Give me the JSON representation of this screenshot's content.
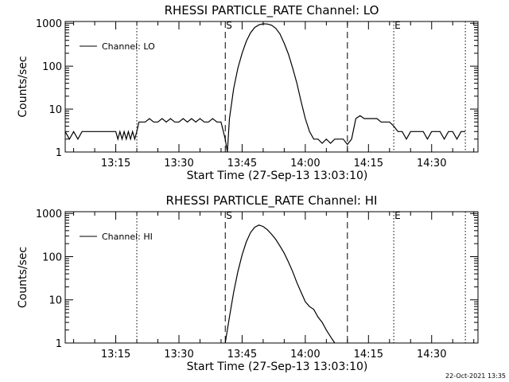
{
  "footer": {
    "timestamp": "22-Oct-2021 13:35"
  },
  "chart_data": [
    {
      "type": "line",
      "title": "RHESSI PARTICLE_RATE Channel: LO",
      "xlabel": "Start Time (27-Sep-13 13:03:10)",
      "ylabel": "Counts/sec",
      "yscale": "log",
      "xlim": [
        "13:03",
        "14:41"
      ],
      "ylim": [
        1,
        1100
      ],
      "x_ticks": [
        "13:15",
        "13:30",
        "13:45",
        "14:00",
        "14:15",
        "14:30"
      ],
      "y_ticks": [
        "1",
        "10",
        "100",
        "1000"
      ],
      "legend": {
        "position": "top-left",
        "entries": [
          "Channel: LO"
        ]
      },
      "markers": [
        {
          "time": "13:20",
          "style": "dotted"
        },
        {
          "time": "13:41",
          "style": "dashed",
          "label": "S"
        },
        {
          "time": "14:10",
          "style": "dashed"
        },
        {
          "time": "14:21",
          "style": "dotted",
          "label": "E"
        },
        {
          "time": "14:38",
          "style": "dotted"
        }
      ],
      "series": [
        {
          "name": "Channel: LO",
          "points": [
            [
              "13:03",
              3
            ],
            [
              "13:04",
              2
            ],
            [
              "13:05",
              3
            ],
            [
              "13:06",
              2
            ],
            [
              "13:07",
              3
            ],
            [
              "13:08",
              3
            ],
            [
              "13:10",
              3
            ],
            [
              "13:12",
              3
            ],
            [
              "13:14",
              3
            ],
            [
              "13:15",
              3
            ],
            [
              "13:15.5",
              2
            ],
            [
              "13:16",
              3
            ],
            [
              "13:16.5",
              2
            ],
            [
              "13:17",
              3
            ],
            [
              "13:17.5",
              2
            ],
            [
              "13:18",
              3
            ],
            [
              "13:18.5",
              2
            ],
            [
              "13:19",
              3
            ],
            [
              "13:19.5",
              2
            ],
            [
              "13:20",
              3
            ],
            [
              "13:20.5",
              5
            ],
            [
              "13:22",
              5
            ],
            [
              "13:23",
              6
            ],
            [
              "13:24",
              5
            ],
            [
              "13:25",
              5
            ],
            [
              "13:26",
              6
            ],
            [
              "13:27",
              5
            ],
            [
              "13:28",
              6
            ],
            [
              "13:29",
              5
            ],
            [
              "13:30",
              5
            ],
            [
              "13:31",
              6
            ],
            [
              "13:32",
              5
            ],
            [
              "13:33",
              6
            ],
            [
              "13:34",
              5
            ],
            [
              "13:35",
              6
            ],
            [
              "13:36",
              5
            ],
            [
              "13:37",
              5
            ],
            [
              "13:38",
              6
            ],
            [
              "13:39",
              5
            ],
            [
              "13:40",
              5
            ],
            [
              "13:41",
              2
            ],
            [
              "13:41.5",
              1
            ],
            [
              "13:42",
              6
            ],
            [
              "13:43",
              30
            ],
            [
              "13:44",
              90
            ],
            [
              "13:45",
              200
            ],
            [
              "13:46",
              380
            ],
            [
              "13:47",
              600
            ],
            [
              "13:48",
              800
            ],
            [
              "13:49",
              920
            ],
            [
              "13:50",
              970
            ],
            [
              "13:51",
              960
            ],
            [
              "13:52",
              900
            ],
            [
              "13:53",
              760
            ],
            [
              "13:54",
              560
            ],
            [
              "13:55",
              340
            ],
            [
              "13:56",
              190
            ],
            [
              "13:57",
              90
            ],
            [
              "13:58",
              40
            ],
            [
              "13:59",
              15
            ],
            [
              "14:00",
              6
            ],
            [
              "14:01",
              3
            ],
            [
              "14:02",
              2
            ],
            [
              "14:03",
              2
            ],
            [
              "14:04",
              1.6
            ],
            [
              "14:05",
              2
            ],
            [
              "14:06",
              1.6
            ],
            [
              "14:07",
              2
            ],
            [
              "14:08",
              2
            ],
            [
              "14:09",
              2
            ],
            [
              "14:10",
              1.5
            ],
            [
              "14:11",
              2
            ],
            [
              "14:12",
              6
            ],
            [
              "14:13",
              7
            ],
            [
              "14:14",
              6
            ],
            [
              "14:15",
              6
            ],
            [
              "14:16",
              6
            ],
            [
              "14:17",
              6
            ],
            [
              "14:18",
              5
            ],
            [
              "14:19",
              5
            ],
            [
              "14:20",
              5
            ],
            [
              "14:21",
              4
            ],
            [
              "14:22",
              3
            ],
            [
              "14:23",
              3
            ],
            [
              "14:24",
              2
            ],
            [
              "14:25",
              3
            ],
            [
              "14:26",
              3
            ],
            [
              "14:27",
              3
            ],
            [
              "14:28",
              3
            ],
            [
              "14:29",
              2
            ],
            [
              "14:30",
              3
            ],
            [
              "14:31",
              3
            ],
            [
              "14:32",
              3
            ],
            [
              "14:33",
              2
            ],
            [
              "14:34",
              3
            ],
            [
              "14:35",
              3
            ],
            [
              "14:36",
              2
            ],
            [
              "14:37",
              3
            ],
            [
              "14:38",
              3
            ]
          ]
        }
      ]
    },
    {
      "type": "line",
      "title": "RHESSI PARTICLE_RATE Channel: HI",
      "xlabel": "Start Time (27-Sep-13 13:03:10)",
      "ylabel": "Counts/sec",
      "yscale": "log",
      "xlim": [
        "13:03",
        "14:41"
      ],
      "ylim": [
        1,
        1100
      ],
      "x_ticks": [
        "13:15",
        "13:30",
        "13:45",
        "14:00",
        "14:15",
        "14:30"
      ],
      "y_ticks": [
        "1",
        "10",
        "100",
        "1000"
      ],
      "legend": {
        "position": "top-left",
        "entries": [
          "Channel: HI"
        ]
      },
      "markers": [
        {
          "time": "13:20",
          "style": "dotted"
        },
        {
          "time": "13:41",
          "style": "dashed",
          "label": "S"
        },
        {
          "time": "14:10",
          "style": "dashed"
        },
        {
          "time": "14:21",
          "style": "dotted",
          "label": "E"
        },
        {
          "time": "14:38",
          "style": "dotted"
        }
      ],
      "series": [
        {
          "name": "Channel: HI",
          "points": [
            [
              "13:41",
              1
            ],
            [
              "13:42",
              4
            ],
            [
              "13:43",
              15
            ],
            [
              "13:44",
              45
            ],
            [
              "13:45",
              110
            ],
            [
              "13:46",
              220
            ],
            [
              "13:47",
              360
            ],
            [
              "13:48",
              480
            ],
            [
              "13:49",
              540
            ],
            [
              "13:50",
              500
            ],
            [
              "13:51",
              420
            ],
            [
              "13:52",
              330
            ],
            [
              "13:53",
              250
            ],
            [
              "13:54",
              175
            ],
            [
              "13:55",
              120
            ],
            [
              "13:56",
              75
            ],
            [
              "13:57",
              45
            ],
            [
              "13:58",
              25
            ],
            [
              "13:59",
              15
            ],
            [
              "14:00",
              9
            ],
            [
              "14:01",
              7
            ],
            [
              "14:02",
              6
            ],
            [
              "14:03",
              4
            ],
            [
              "14:04",
              3
            ],
            [
              "14:05",
              2
            ],
            [
              "14:06",
              1.4
            ],
            [
              "14:07",
              1
            ]
          ]
        }
      ]
    }
  ]
}
